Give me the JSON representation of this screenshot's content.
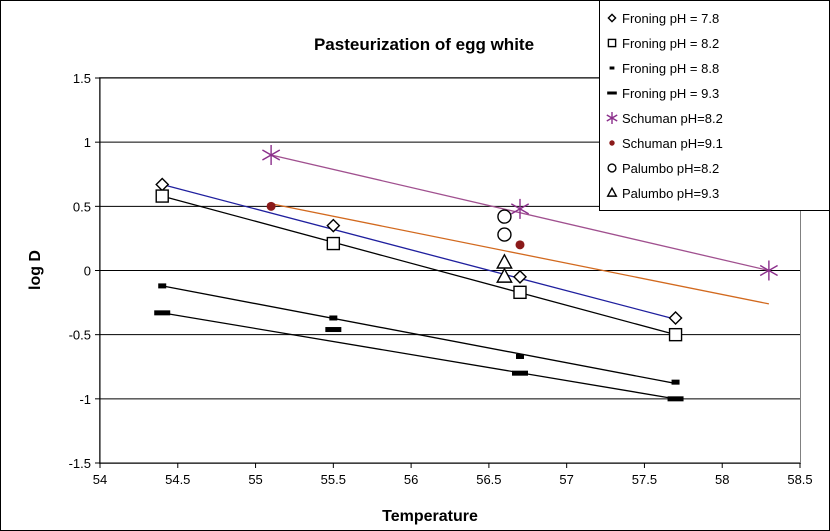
{
  "chart_data": {
    "type": "scatter",
    "title": "Pasteurization of egg white",
    "xlabel": "Temperature",
    "ylabel": "log D",
    "xlim": [
      54,
      58.5
    ],
    "ylim": [
      -1.5,
      1.5
    ],
    "xticks": [
      54,
      54.5,
      55,
      55.5,
      56,
      56.5,
      57,
      57.5,
      58,
      58.5
    ],
    "yticks": [
      -1.5,
      -1,
      -0.5,
      0,
      0.5,
      1,
      1.5
    ],
    "xtick_labels": [
      "54",
      "54.5",
      "55",
      "55.5",
      "56",
      "56.5",
      "57",
      "57.5",
      "58",
      "58.5"
    ],
    "ytick_labels": [
      "-1.5",
      "-1",
      "-0.5",
      "0",
      "0.5",
      "1",
      "1.5"
    ],
    "grid": "horizontal",
    "legend_position": "top-right",
    "series": [
      {
        "name": "Froning pH = 7.8",
        "marker": "diamond",
        "color": "#000000",
        "points": [
          [
            54.4,
            0.67
          ],
          [
            55.5,
            0.35
          ],
          [
            56.7,
            -0.05
          ],
          [
            57.7,
            -0.37
          ]
        ],
        "fit": {
          "x": [
            54.4,
            57.7
          ],
          "y": [
            0.67,
            -0.38
          ],
          "color": "#1f1f9e"
        }
      },
      {
        "name": "Froning pH = 8.2",
        "marker": "square",
        "color": "#000000",
        "points": [
          [
            54.4,
            0.58
          ],
          [
            55.5,
            0.21
          ],
          [
            56.7,
            -0.17
          ],
          [
            57.7,
            -0.5
          ]
        ],
        "fit": {
          "x": [
            54.4,
            57.7
          ],
          "y": [
            0.58,
            -0.5
          ],
          "color": "#000000"
        }
      },
      {
        "name": "Froning pH = 8.8",
        "marker": "small-dash",
        "color": "#000000",
        "points": [
          [
            54.4,
            -0.12
          ],
          [
            55.5,
            -0.37
          ],
          [
            56.7,
            -0.67
          ],
          [
            57.7,
            -0.87
          ]
        ],
        "fit": {
          "x": [
            54.4,
            57.7
          ],
          "y": [
            -0.12,
            -0.88
          ],
          "color": "#000000"
        }
      },
      {
        "name": "Froning pH = 9.3",
        "marker": "dash",
        "color": "#000000",
        "points": [
          [
            54.4,
            -0.33
          ],
          [
            55.5,
            -0.46
          ],
          [
            56.7,
            -0.8
          ],
          [
            57.7,
            -1.0
          ]
        ],
        "fit": {
          "x": [
            54.4,
            57.7
          ],
          "y": [
            -0.33,
            -1.0
          ],
          "color": "#000000"
        }
      },
      {
        "name": "Schuman pH=8.2",
        "marker": "star",
        "color": "#8b2f8b",
        "points": [
          [
            55.1,
            0.9
          ],
          [
            56.7,
            0.48
          ],
          [
            58.3,
            0.0
          ]
        ],
        "fit": {
          "x": [
            55.1,
            58.3
          ],
          "y": [
            0.9,
            0.0
          ],
          "color": "#a0508f"
        }
      },
      {
        "name": "Schuman pH=9.1",
        "marker": "circle-filled",
        "color": "#8b1a1a",
        "points": [
          [
            55.1,
            0.5
          ],
          [
            56.7,
            0.2
          ]
        ],
        "fit": {
          "x": [
            55.1,
            58.3
          ],
          "y": [
            0.52,
            -0.26
          ],
          "color": "#d2691e"
        }
      },
      {
        "name": "Palumbo pH=8.2",
        "marker": "circle-open",
        "color": "#000000",
        "points": [
          [
            56.6,
            0.42
          ],
          [
            56.6,
            0.28
          ]
        ]
      },
      {
        "name": "Palumbo pH=9.3",
        "marker": "triangle",
        "color": "#000000",
        "points": [
          [
            56.6,
            0.06
          ],
          [
            56.6,
            -0.05
          ]
        ]
      }
    ]
  }
}
